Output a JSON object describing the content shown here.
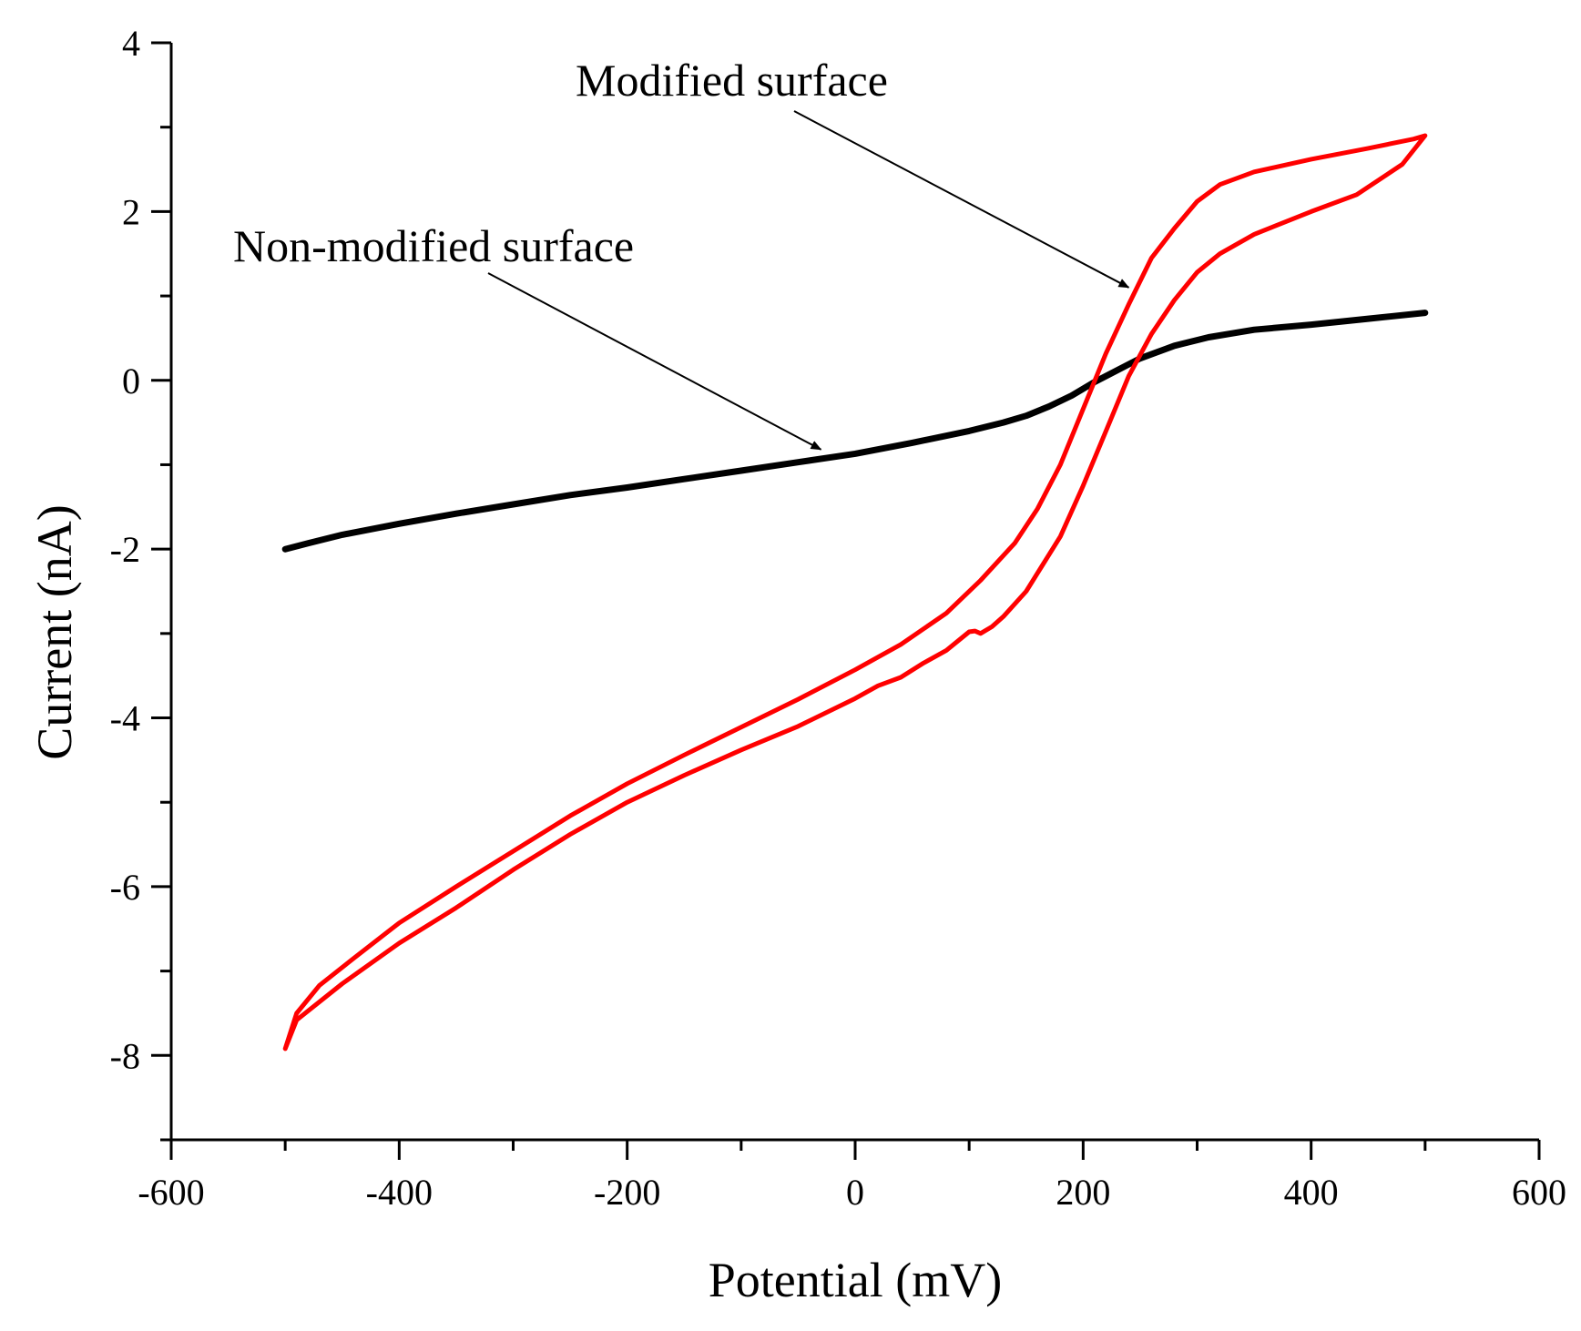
{
  "chart_data": {
    "type": "line",
    "title": "",
    "xlabel": "Potential (mV)",
    "ylabel": "Current (nA)",
    "xlim": [
      -600,
      600
    ],
    "ylim": [
      -9,
      4
    ],
    "xticks": [
      -600,
      -400,
      -200,
      0,
      200,
      400,
      600
    ],
    "xtick_labels": [
      "-600",
      "-400",
      "-200",
      "0",
      "200",
      "400",
      "600"
    ],
    "yticks": [
      -8,
      -6,
      -4,
      -2,
      0,
      2,
      4
    ],
    "ytick_labels": [
      "-8",
      "-6",
      "-4",
      "-2",
      "0",
      "2",
      "4"
    ],
    "grid": false,
    "series": [
      {
        "name": "Non-modified surface",
        "color": "#000000",
        "x": [
          -500,
          -480,
          -450,
          -400,
          -350,
          -300,
          -250,
          -200,
          -150,
          -100,
          -50,
          0,
          50,
          100,
          130,
          150,
          170,
          190,
          210,
          230,
          250,
          280,
          310,
          350,
          400,
          450,
          500
        ],
        "y": [
          -2.0,
          -1.93,
          -1.83,
          -1.7,
          -1.58,
          -1.47,
          -1.36,
          -1.27,
          -1.17,
          -1.07,
          -0.97,
          -0.87,
          -0.74,
          -0.6,
          -0.5,
          -0.42,
          -0.31,
          -0.18,
          -0.02,
          0.12,
          0.26,
          0.41,
          0.51,
          0.6,
          0.66,
          0.73,
          0.8
        ]
      },
      {
        "name": "Modified surface",
        "color": "#ff0000",
        "x": [
          -500,
          -490,
          -470,
          -440,
          -400,
          -350,
          -300,
          -250,
          -200,
          -150,
          -100,
          -50,
          0,
          40,
          80,
          110,
          140,
          160,
          180,
          200,
          220,
          240,
          260,
          280,
          300,
          320,
          350,
          400,
          450,
          490,
          500,
          480,
          440,
          400,
          350,
          320,
          300,
          280,
          260,
          240,
          220,
          200,
          180,
          150,
          130,
          120,
          110,
          105,
          100,
          80,
          60,
          40,
          20,
          0,
          -50,
          -100,
          -150,
          -200,
          -250,
          -300,
          -350,
          -400,
          -450,
          -490,
          -500
        ],
        "y": [
          -7.92,
          -7.5,
          -7.17,
          -6.85,
          -6.43,
          -6.0,
          -5.58,
          -5.16,
          -4.78,
          -4.44,
          -4.11,
          -3.78,
          -3.43,
          -3.13,
          -2.76,
          -2.37,
          -1.93,
          -1.52,
          -1.0,
          -0.34,
          0.32,
          0.9,
          1.45,
          1.8,
          2.12,
          2.32,
          2.47,
          2.62,
          2.75,
          2.86,
          2.9,
          2.56,
          2.2,
          2.0,
          1.73,
          1.5,
          1.28,
          0.95,
          0.55,
          0.05,
          -0.6,
          -1.25,
          -1.85,
          -2.5,
          -2.8,
          -2.92,
          -3.0,
          -2.97,
          -2.98,
          -3.2,
          -3.35,
          -3.52,
          -3.62,
          -3.77,
          -4.1,
          -4.38,
          -4.68,
          -5.0,
          -5.38,
          -5.8,
          -6.25,
          -6.67,
          -7.15,
          -7.58,
          -7.92
        ]
      }
    ],
    "annotations": [
      {
        "text": "Modified surface",
        "target_x": 240,
        "target_y": 1.1
      },
      {
        "text": "Non-modified surface",
        "target_x": -30,
        "target_y": -0.82
      }
    ]
  }
}
